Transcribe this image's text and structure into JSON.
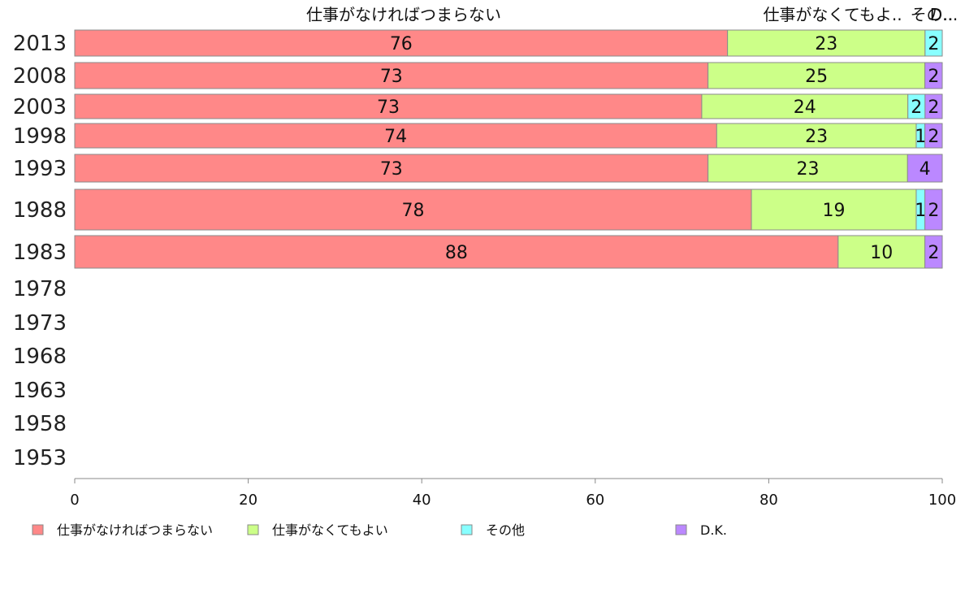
{
  "chart_data": {
    "type": "bar",
    "orientation": "horizontal",
    "stacked": true,
    "title": "",
    "xlabel": "",
    "ylabel": "",
    "xlim": [
      0,
      100
    ],
    "x_ticks": [
      "0",
      "20",
      "40",
      "60",
      "80",
      "100"
    ],
    "categories": [
      "2013",
      "2008",
      "2003",
      "1998",
      "1993",
      "1988",
      "1983",
      "1978",
      "1973",
      "1968",
      "1963",
      "1958",
      "1953"
    ],
    "header_labels": [
      "仕事がなければつまらない",
      "仕事がなくてもよ..",
      "その..",
      "D..."
    ],
    "series": [
      {
        "name": "仕事がなければつまらない",
        "color": "#ff8888",
        "values": [
          76,
          73,
          73,
          74,
          73,
          78,
          88,
          null,
          null,
          null,
          null,
          null,
          null
        ],
        "labels": [
          "76",
          "73",
          "73",
          "74",
          "73",
          "78",
          "88",
          "",
          "",
          "",
          "",
          "",
          ""
        ]
      },
      {
        "name": "仕事がなくてもよい",
        "color": "#ccff88",
        "values": [
          23,
          25,
          24,
          23,
          23,
          19,
          10,
          null,
          null,
          null,
          null,
          null,
          null
        ],
        "labels": [
          "23",
          "25",
          "24",
          "23",
          "23",
          "19",
          "10",
          "",
          "",
          "",
          "",
          "",
          ""
        ]
      },
      {
        "name": "その他",
        "color": "#88ffff",
        "values": [
          2,
          0,
          2,
          1,
          0,
          1,
          0,
          null,
          null,
          null,
          null,
          null,
          null
        ],
        "labels": [
          "2",
          "",
          "2",
          "1",
          "",
          "1",
          "",
          "",
          "",
          "",
          "",
          "",
          ""
        ]
      },
      {
        "name": "D.K.",
        "color": "#bb88ff",
        "values": [
          0,
          2,
          2,
          2,
          4,
          2,
          2,
          null,
          null,
          null,
          null,
          null,
          null
        ],
        "labels": [
          "",
          "2",
          "2",
          "2",
          "4",
          "2",
          "2",
          "",
          "",
          "",
          "",
          "",
          ""
        ]
      }
    ],
    "legend_position": "bottom",
    "grid": false
  }
}
